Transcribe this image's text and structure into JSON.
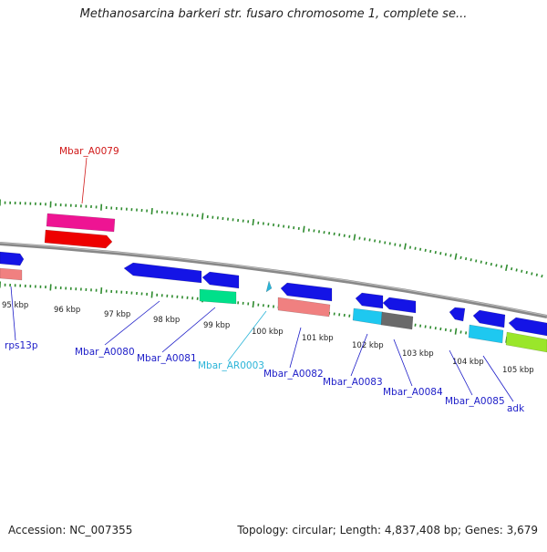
{
  "title": "Methanosarcina barkeri str. fusaro chromosome 1, complete se...",
  "footer": {
    "accession": "Accession: NC_007355",
    "summary": "Topology: circular; Length: 4,837,408 bp; Genes: 3,679"
  },
  "colors": {
    "backbone": "#888888",
    "tick": "#2e8b2e",
    "scale_label": "#222222",
    "gene_label": "#1c1cc8",
    "rna_label": "#2ab4d8",
    "highlight_label": "#d01818"
  },
  "scale_labels": [
    "95 kbp",
    "96 kbp",
    "97 kbp",
    "98 kbp",
    "99 kbp",
    "100 kbp",
    "101 kbp",
    "102 kbp",
    "103 kbp",
    "104 kbp",
    "105 kbp"
  ],
  "features": [
    {
      "name": "rps13p-blue",
      "color": "#1414e6"
    },
    {
      "name": "rps13p-pink",
      "color": "#f08080"
    },
    {
      "name": "Mbar_A0079-magenta",
      "color": "#ee1493"
    },
    {
      "name": "Mbar_A0079-red",
      "color": "#ee0000"
    },
    {
      "name": "Mbar_A0080",
      "color": "#1414e6"
    },
    {
      "name": "Mbar_A0081-blue",
      "color": "#1414e6"
    },
    {
      "name": "Mbar_A0081-green",
      "color": "#00e08a"
    },
    {
      "name": "Mbar_AR0003",
      "color": "#2ab4d8"
    },
    {
      "name": "Mbar_A0082-blue",
      "color": "#1414e6"
    },
    {
      "name": "Mbar_A0082-pink",
      "color": "#f08080"
    },
    {
      "name": "Mbar_A0083-blue",
      "color": "#1414e6"
    },
    {
      "name": "Mbar_A0083-cyan",
      "color": "#1ec8f0"
    },
    {
      "name": "Mbar_A0084-blue",
      "color": "#1414e6"
    },
    {
      "name": "Mbar_A0084-gray",
      "color": "#6a6a6a"
    },
    {
      "name": "Mbar_A0085-blue",
      "color": "#1414e6"
    },
    {
      "name": "Mbar_A0085-cyan",
      "color": "#1ec8f0"
    },
    {
      "name": "adk-blue",
      "color": "#1414e6"
    },
    {
      "name": "adk-lime",
      "color": "#9ae62a"
    }
  ],
  "gene_labels": [
    "rps13p",
    "Mbar_A0079",
    "Mbar_A0080",
    "Mbar_A0081",
    "Mbar_AR0003",
    "Mbar_A0082",
    "Mbar_A0083",
    "Mbar_A0084",
    "Mbar_A0085",
    "adk"
  ]
}
